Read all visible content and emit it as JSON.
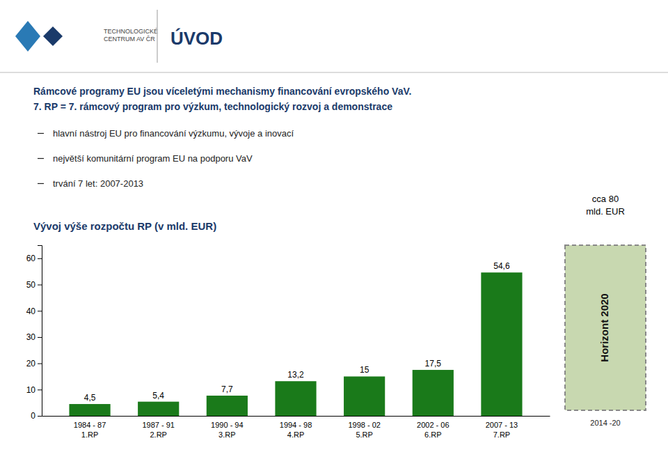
{
  "chart_data": {
    "type": "bar",
    "title": "Vývoj výše rozpočtu RP (v mld. EUR)",
    "categories": [
      "1984 - 87\n1.RP",
      "1987 - 91\n2.RP",
      "1990 - 94\n3.RP",
      "1994 - 98\n4.RP",
      "1998 - 02\n5.RP",
      "2002 - 06\n6.RP",
      "2007 - 13\n7.RP"
    ],
    "values": [
      4.5,
      5.4,
      7.7,
      13.2,
      15.0,
      17.5,
      54.6
    ],
    "value_labels": [
      "4,5",
      "5,4",
      "7,7",
      "13,2",
      "15",
      "17,5",
      "54,6"
    ],
    "data_labels": true,
    "color": "#1a7a1a",
    "ylim": [
      0,
      65
    ],
    "yticks": [
      0,
      10,
      20,
      30,
      40,
      50,
      60
    ],
    "grid": false,
    "annotations": [
      "Rámcové programy EU jsou víceletými mechanismy financování evropského VaV.",
      "7. RP = 7. rámcový program pro výzkum, technologický rozvoj a demonstrace",
      "hlavní nástroj EU pro financování výzkumu, vývoje a inovací",
      "největší komunitární program EU na podporu VaV",
      "trvání 7 let: 2007-2013",
      "cca 80\nmld. EUR",
      "Horizont 2020",
      "2014 -20",
      "TECHNOLOGICKÉ\nCENTRUM AV ČR",
      "ÚVOD"
    ]
  }
}
